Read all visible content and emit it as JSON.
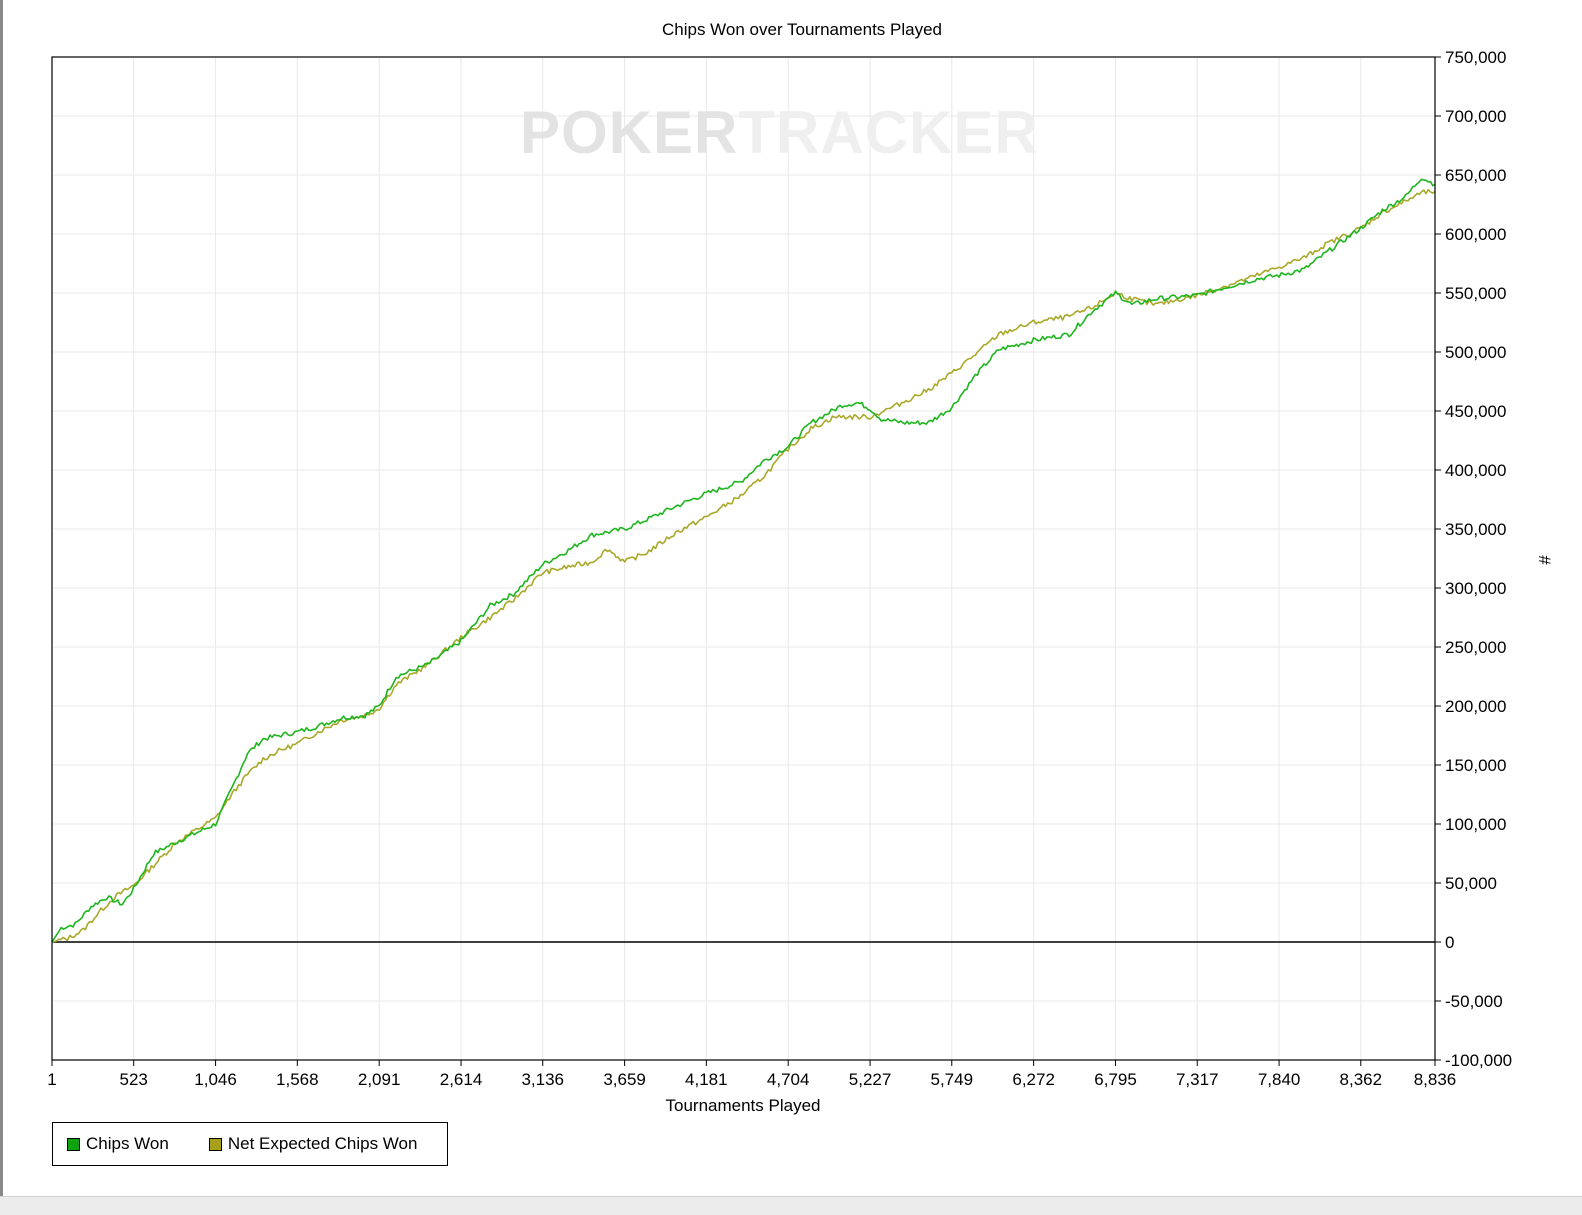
{
  "chart_data": {
    "type": "line",
    "title": "Chips Won over Tournaments Played",
    "xlabel": "Tournaments Played",
    "ylabel": "#",
    "xlim": [
      1,
      8836
    ],
    "ylim": [
      -100000,
      750000
    ],
    "x_ticks": [
      "1",
      "523",
      "1,046",
      "1,568",
      "2,091",
      "2,614",
      "3,136",
      "3,659",
      "4,181",
      "4,704",
      "5,227",
      "5,749",
      "6,272",
      "6,795",
      "7,317",
      "7,840",
      "8,362",
      "8,836"
    ],
    "y_ticks": [
      "750,000",
      "700,000",
      "650,000",
      "600,000",
      "550,000",
      "500,000",
      "450,000",
      "400,000",
      "350,000",
      "300,000",
      "250,000",
      "200,000",
      "150,000",
      "100,000",
      "50,000",
      "0",
      "-50,000",
      "-100,000"
    ],
    "grid": true,
    "legend_position": "bottom-left",
    "watermark": "POKERTRACKER",
    "series": [
      {
        "name": "Chips Won",
        "color": "#1fb51f",
        "x": [
          1,
          60,
          150,
          250,
          350,
          450,
          523,
          650,
          800,
          1046,
          1150,
          1250,
          1350,
          1450,
          1568,
          1700,
          1850,
          2000,
          2091,
          2200,
          2400,
          2614,
          2800,
          2950,
          3136,
          3300,
          3450,
          3659,
          3800,
          4000,
          4181,
          4400,
          4550,
          4704,
          4850,
          5050,
          5150,
          5227,
          5300,
          5450,
          5600,
          5749,
          5900,
          6050,
          6272,
          6500,
          6650,
          6795,
          6900,
          7050,
          7317,
          7500,
          7700,
          7840,
          8000,
          8150,
          8362,
          8500,
          8650,
          8750,
          8836
        ],
        "y": [
          0,
          12000,
          15000,
          30000,
          38000,
          32000,
          45000,
          75000,
          85000,
          100000,
          130000,
          160000,
          172000,
          175000,
          178000,
          183000,
          190000,
          192000,
          200000,
          225000,
          235000,
          255000,
          285000,
          295000,
          320000,
          332000,
          345000,
          350000,
          358000,
          370000,
          380000,
          390000,
          408000,
          420000,
          440000,
          455000,
          457000,
          452000,
          443000,
          440000,
          440000,
          453000,
          480000,
          502000,
          510000,
          515000,
          535000,
          550000,
          540000,
          545000,
          548000,
          555000,
          562000,
          565000,
          570000,
          585000,
          605000,
          620000,
          632000,
          648000,
          642000
        ]
      },
      {
        "name": "Net Expected Chips Won",
        "color": "#a9a82a",
        "x": [
          1,
          100,
          200,
          300,
          400,
          523,
          650,
          800,
          1046,
          1150,
          1250,
          1350,
          1450,
          1568,
          1700,
          1850,
          2000,
          2091,
          2200,
          2400,
          2614,
          2800,
          2950,
          3136,
          3300,
          3450,
          3550,
          3659,
          3800,
          4000,
          4181,
          4400,
          4550,
          4704,
          4850,
          5000,
          5227,
          5400,
          5600,
          5749,
          5900,
          6050,
          6272,
          6500,
          6650,
          6795,
          6900,
          7050,
          7317,
          7500,
          7700,
          7840,
          8000,
          8150,
          8362,
          8500,
          8650,
          8750,
          8836
        ],
        "y": [
          0,
          3000,
          10000,
          25000,
          38000,
          48000,
          65000,
          85000,
          105000,
          125000,
          142000,
          155000,
          162000,
          168000,
          178000,
          188000,
          192000,
          198000,
          218000,
          235000,
          258000,
          275000,
          290000,
          313000,
          318000,
          322000,
          333000,
          322000,
          330000,
          348000,
          360000,
          378000,
          395000,
          418000,
          435000,
          445000,
          445000,
          455000,
          468000,
          482000,
          498000,
          515000,
          525000,
          530000,
          538000,
          550000,
          545000,
          540000,
          548000,
          556000,
          565000,
          572000,
          580000,
          592000,
          605000,
          618000,
          628000,
          635000,
          636000
        ]
      }
    ]
  }
}
